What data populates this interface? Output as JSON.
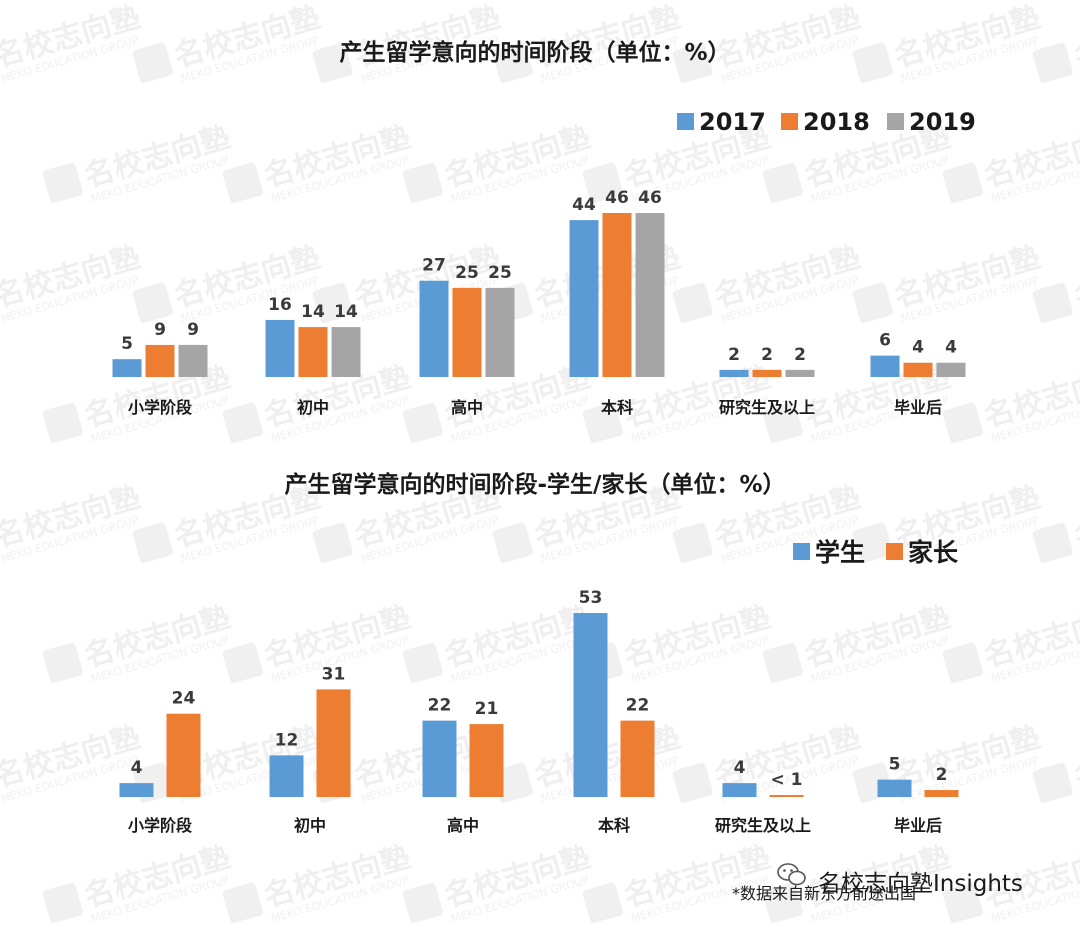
{
  "watermark": {
    "brand_cn": "名校志向塾",
    "brand_en": "MEKO EDUCATION GROUP"
  },
  "chart_data": [
    {
      "type": "bar",
      "title": "产生留学意向的时间阶段（单位：%）",
      "categories": [
        "小学阶段",
        "初中",
        "高中",
        "本科",
        "研究生及以上",
        "毕业后"
      ],
      "series": [
        {
          "name": "2017",
          "color": "#5b9bd5",
          "values": [
            5,
            16,
            27,
            44,
            2,
            6
          ]
        },
        {
          "name": "2018",
          "color": "#ed7d31",
          "values": [
            9,
            14,
            25,
            46,
            2,
            4
          ]
        },
        {
          "name": "2019",
          "color": "#a5a5a5",
          "values": [
            9,
            14,
            25,
            46,
            2,
            4
          ]
        }
      ],
      "ylim": [
        0,
        46
      ],
      "legend_position": "top-right",
      "grid": false
    },
    {
      "type": "bar",
      "title": "产生留学意向的时间阶段-学生/家长（单位：%）",
      "categories": [
        "小学阶段",
        "初中",
        "高中",
        "本科",
        "研究生及以上",
        "毕业后"
      ],
      "series": [
        {
          "name": "学生",
          "color": "#5b9bd5",
          "values": [
            4,
            12,
            22,
            53,
            4,
            5
          ],
          "labels": [
            "4",
            "12",
            "22",
            "53",
            "4",
            "5"
          ]
        },
        {
          "name": "家长",
          "color": "#ed7d31",
          "values": [
            24,
            31,
            21,
            22,
            0.5,
            2
          ],
          "labels": [
            "24",
            "31",
            "21",
            "22",
            "< 1",
            "2"
          ]
        }
      ],
      "ylim": [
        0,
        53
      ],
      "legend_position": "top-right",
      "grid": false
    }
  ],
  "footer": {
    "source": "*数据来自新东方前途出国",
    "brand_label": "名校志向塾Insights",
    "brand_icon": "wechat-icon"
  }
}
